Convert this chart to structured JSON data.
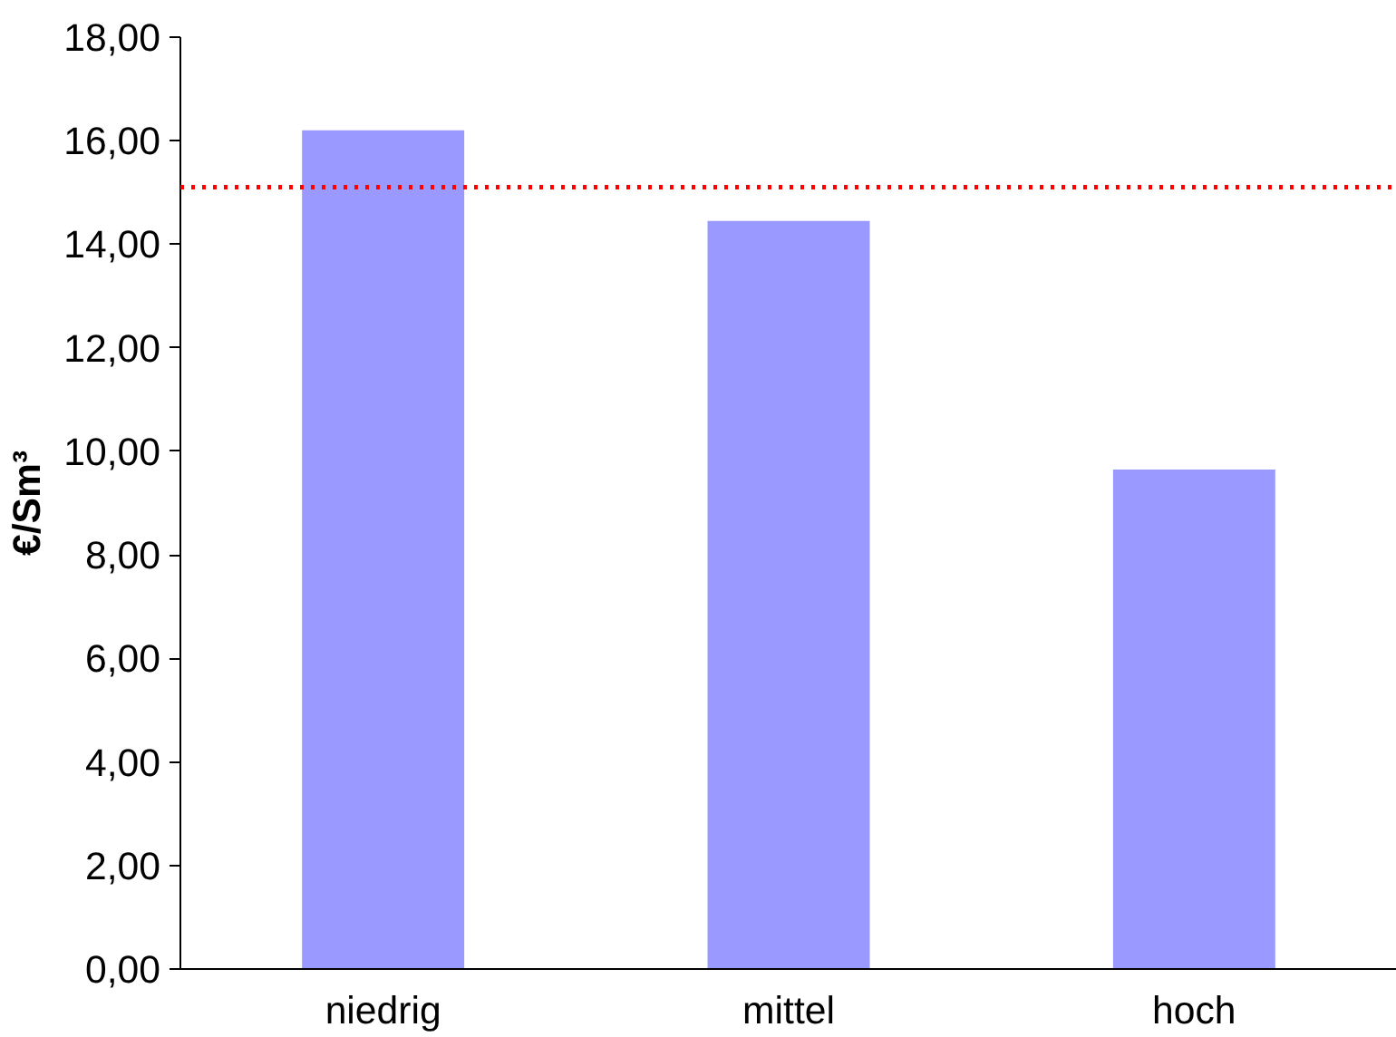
{
  "chart_data": {
    "type": "bar",
    "ylabel": "€/Sm³",
    "categories": [
      "niedrig",
      "mittel",
      "hoch"
    ],
    "values": [
      16.2,
      14.45,
      9.65
    ],
    "color": "#9999ff",
    "ylim": [
      0,
      18
    ],
    "yticks": [
      {
        "value": 0,
        "label": "0,00"
      },
      {
        "value": 2,
        "label": "2,00"
      },
      {
        "value": 4,
        "label": "4,00"
      },
      {
        "value": 6,
        "label": "6,00"
      },
      {
        "value": 8,
        "label": "8,00"
      },
      {
        "value": 10,
        "label": "10,00"
      },
      {
        "value": 12,
        "label": "12,00"
      },
      {
        "value": 14,
        "label": "14,00"
      },
      {
        "value": 16,
        "label": "16,00"
      },
      {
        "value": 18,
        "label": "18,00"
      }
    ],
    "ref_lines": [
      {
        "axis": "y",
        "value": 15.1,
        "color": "#ff0000",
        "line_style": "dotted"
      }
    ],
    "grid": false
  }
}
